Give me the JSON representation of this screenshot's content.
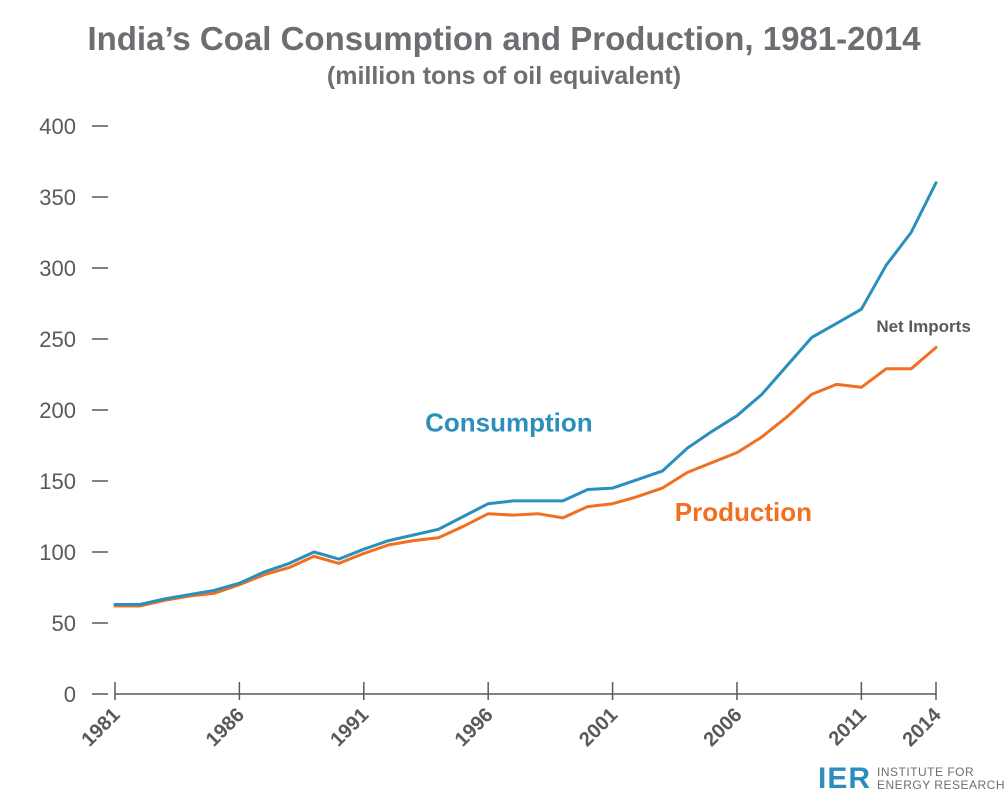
{
  "chart_data": {
    "type": "line",
    "title": "India’s Coal Consumption and Production, 1981-2014",
    "subtitle": "(million tons of oil equivalent)",
    "xlim": [
      1981,
      2014
    ],
    "ylim": [
      0,
      400
    ],
    "x_ticks": [
      "1981",
      "1986",
      "1991",
      "1996",
      "2001",
      "2006",
      "2011",
      "2014"
    ],
    "y_ticks": [
      "0",
      "50",
      "100",
      "150",
      "200",
      "250",
      "300",
      "350",
      "400"
    ],
    "grid": false,
    "x": [
      1981,
      1982,
      1983,
      1984,
      1985,
      1986,
      1987,
      1988,
      1989,
      1990,
      1991,
      1992,
      1993,
      1994,
      1995,
      1996,
      1997,
      1998,
      1999,
      2000,
      2001,
      2002,
      2003,
      2004,
      2005,
      2006,
      2007,
      2008,
      2009,
      2010,
      2011,
      2012,
      2013,
      2014
    ],
    "series": [
      {
        "name": "Consumption",
        "color": "#2a8fbd",
        "values": [
          63,
          63,
          67,
          70,
          73,
          78,
          86,
          92,
          100,
          95,
          102,
          108,
          112,
          116,
          125,
          134,
          136,
          136,
          136,
          144,
          145,
          151,
          157,
          173,
          185,
          196,
          211,
          231,
          251,
          261,
          271,
          302,
          325,
          360
        ]
      },
      {
        "name": "Production",
        "color": "#f26f21",
        "values": [
          62,
          62,
          66,
          69,
          71,
          77,
          84,
          89,
          97,
          92,
          99,
          105,
          108,
          110,
          118,
          127,
          126,
          127,
          124,
          132,
          134,
          139,
          145,
          156,
          163,
          170,
          181,
          195,
          211,
          218,
          216,
          229,
          229,
          244
        ]
      }
    ],
    "annotations": [
      {
        "text": "Net Imports",
        "x": 2013.5,
        "y": 255
      }
    ]
  },
  "logo": {
    "mark": "IER",
    "line1": "INSTITUTE FOR",
    "line2": "ENERGY RESEARCH",
    "color": "#2a8fbd"
  }
}
